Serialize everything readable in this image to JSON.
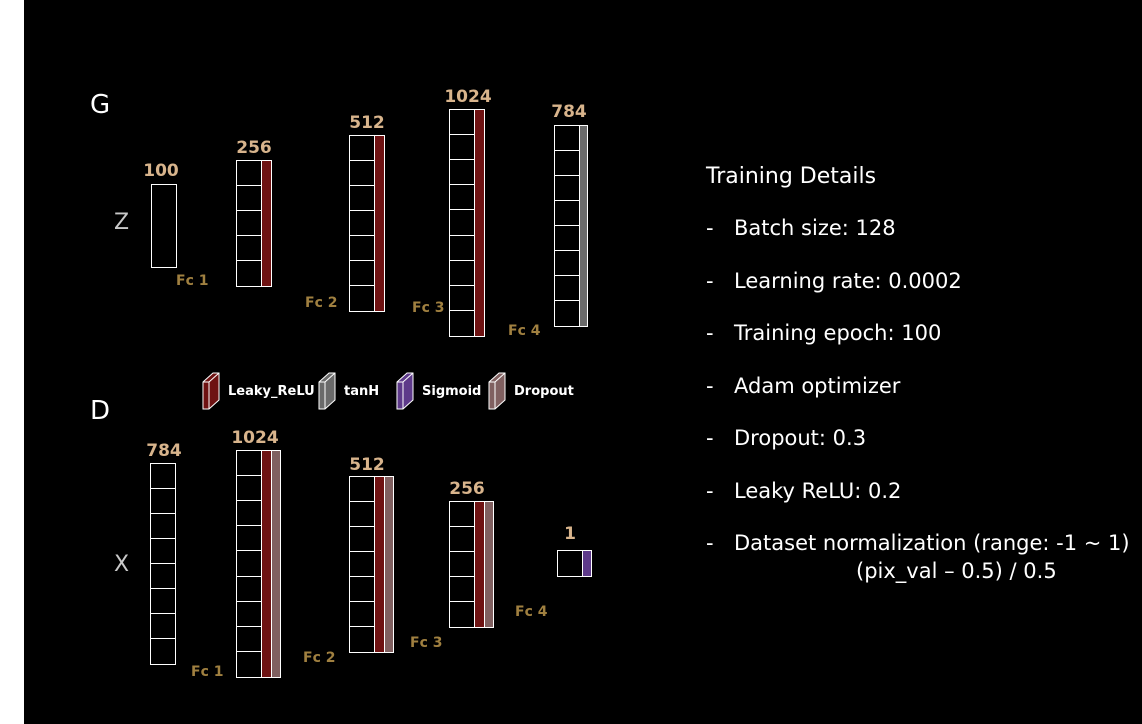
{
  "generator": {
    "title": "G",
    "input_label": "Z",
    "layers": [
      {
        "size": "100",
        "fc": "Fc 1"
      },
      {
        "size": "256",
        "fc": "Fc 2"
      },
      {
        "size": "512",
        "fc": "Fc 3"
      },
      {
        "size": "1024",
        "fc": "Fc 4"
      },
      {
        "size": "784"
      }
    ]
  },
  "discriminator": {
    "title": "D",
    "input_label": "X",
    "layers": [
      {
        "size": "784",
        "fc": "Fc 1"
      },
      {
        "size": "1024",
        "fc": "Fc 2"
      },
      {
        "size": "512",
        "fc": "Fc 3"
      },
      {
        "size": "256",
        "fc": "Fc 4"
      },
      {
        "size": "1"
      }
    ]
  },
  "legend": [
    {
      "label": "Leaky_ReLU",
      "color": "#6e1212"
    },
    {
      "label": "tanH",
      "color": "#6a6a6a"
    },
    {
      "label": "Sigmoid",
      "color": "#5e3a8a"
    },
    {
      "label": "Dropout",
      "color": "#806060"
    }
  ],
  "training": {
    "title": "Training Details",
    "items": [
      {
        "dash": "-",
        "text": "Batch size: 128"
      },
      {
        "dash": "-",
        "text": "Learning rate: 0.0002"
      },
      {
        "dash": "-",
        "text": "Training epoch: 100"
      },
      {
        "dash": "-",
        "text": "Adam optimizer"
      },
      {
        "dash": "-",
        "text": "Dropout: 0.3"
      },
      {
        "dash": "-",
        "text": "Leaky ReLU: 0.2"
      },
      {
        "dash": "-",
        "text": "Dataset normalization (range: -1 ~ 1)"
      }
    ],
    "subline": "(pix_val – 0.5) / 0.5"
  },
  "colors": {
    "background": "#000000",
    "leaky_relu": "#6e1212",
    "tanh": "#6a6a6a",
    "sigmoid": "#5e3a8a",
    "dropout": "#806060",
    "size_label": "#d8b48c",
    "fc_label": "#a08040"
  }
}
